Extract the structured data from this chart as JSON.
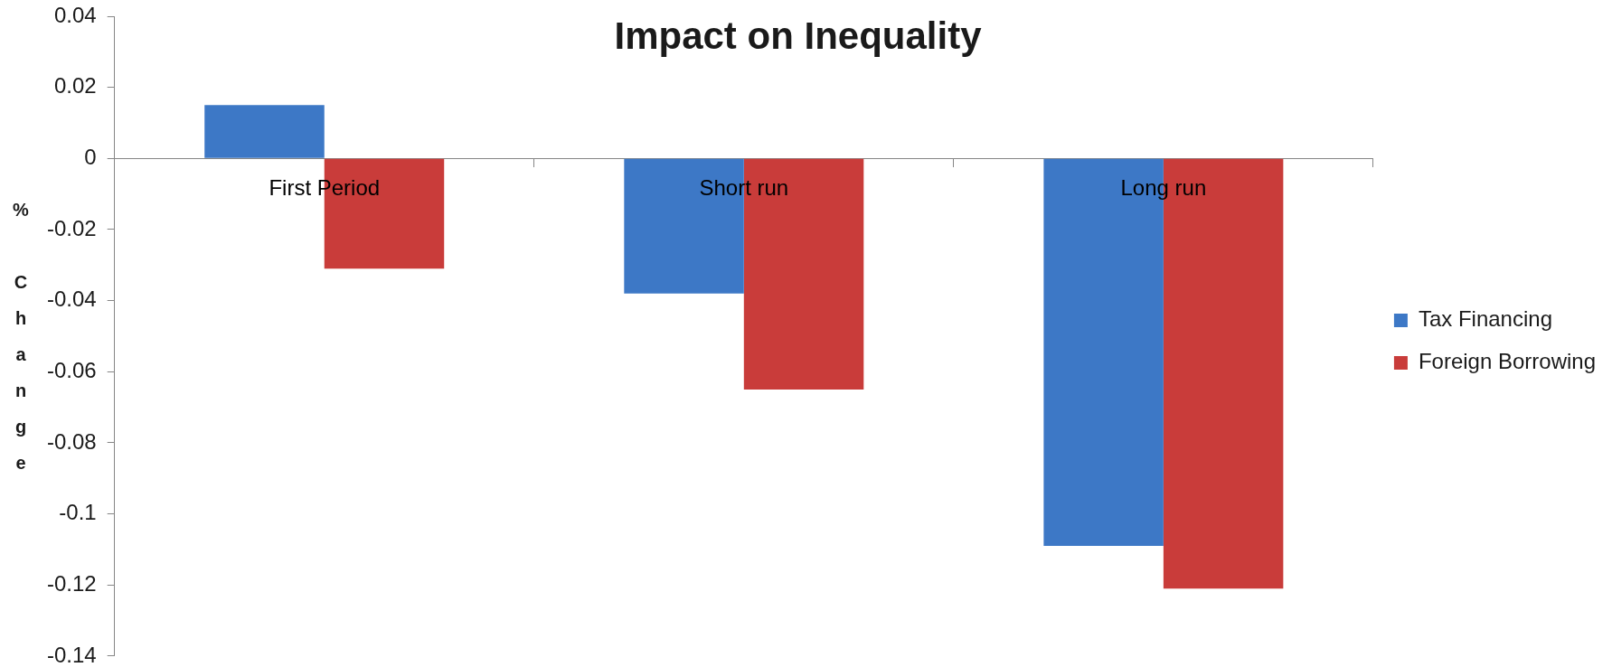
{
  "chart_data": {
    "type": "bar",
    "title": "Impact on Inequality",
    "ylabel": "% Change",
    "categories": [
      "First Period",
      "Short run",
      "Long run"
    ],
    "series": [
      {
        "name": "Tax Financing",
        "color": "#3d78c6",
        "values": [
          0.015,
          -0.038,
          -0.109
        ]
      },
      {
        "name": "Foreign Borrowing",
        "color": "#c93c3a",
        "values": [
          -0.031,
          -0.065,
          -0.121
        ]
      }
    ],
    "ylim": [
      -0.14,
      0.04
    ],
    "yticks": [
      0.04,
      0.02,
      0,
      -0.02,
      -0.04,
      -0.06,
      -0.08,
      -0.1,
      -0.12,
      -0.14
    ],
    "legend": "right"
  }
}
